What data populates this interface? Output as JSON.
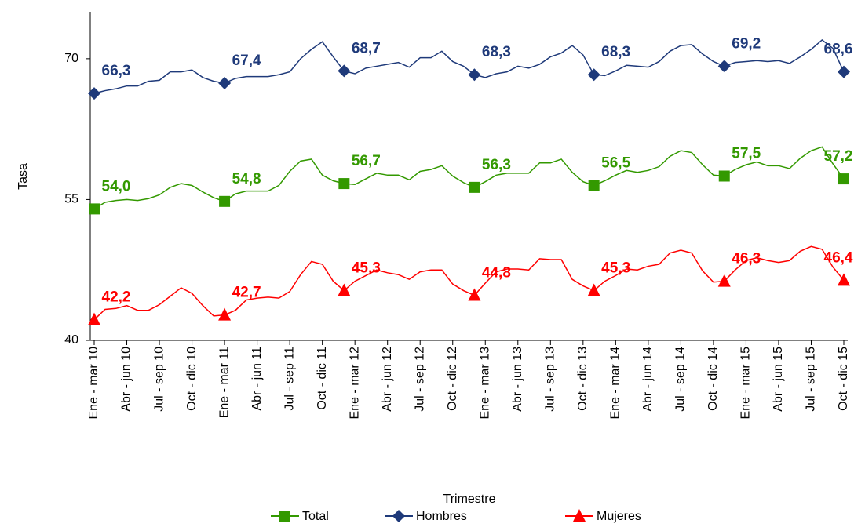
{
  "chart_data": {
    "type": "line",
    "y_label": "Tasa",
    "x_label": "Trimestre",
    "categories": [
      "Ene - mar 10",
      null,
      null,
      "Abr - jun 10",
      null,
      null,
      "Jul - sep 10",
      null,
      null,
      "Oct - dic 10",
      null,
      null,
      "Ene - mar 11",
      null,
      null,
      "Abr - jun 11",
      null,
      null,
      "Jul - sep 11",
      null,
      null,
      "Oct - dic 11",
      null,
      null,
      "Ene - mar 12",
      null,
      null,
      "Abr - jun 12",
      null,
      null,
      "Jul - sep 12",
      null,
      null,
      "Oct - dic 12",
      null,
      null,
      "Ene - mar 13",
      null,
      null,
      "Abr - jun 13",
      null,
      null,
      "Jul - sep 13",
      null,
      null,
      "Oct - dic 13",
      null,
      null,
      "Ene - mar 14",
      null,
      null,
      "Abr - jun 14",
      null,
      null,
      "Jul - sep 14",
      null,
      null,
      "Oct - dic 14",
      null,
      null,
      "Ene - mar 15",
      null,
      null,
      "Abr - jun 15",
      null,
      null,
      "Jul - sep 15",
      null,
      null,
      "Oct - dic 15"
    ],
    "ylim": [
      40,
      75
    ],
    "yticks": [
      40,
      55,
      70
    ],
    "series": [
      {
        "name": "Total",
        "color": "#339900",
        "marker": "square",
        "values": [
          54.0,
          54.7,
          54.9,
          55.0,
          54.9,
          55.1,
          55.5,
          56.3,
          56.7,
          56.5,
          55.8,
          55.2,
          54.8,
          55.6,
          55.9,
          55.9,
          55.9,
          56.5,
          58.0,
          59.1,
          59.3,
          57.6,
          57.0,
          56.7,
          56.6,
          57.2,
          57.8,
          57.6,
          57.6,
          57.1,
          58.0,
          58.2,
          58.6,
          57.5,
          56.8,
          56.3,
          56.9,
          57.6,
          57.8,
          57.8,
          57.8,
          58.9,
          58.9,
          59.3,
          57.9,
          56.9,
          56.5,
          57.0,
          57.6,
          58.1,
          57.9,
          58.1,
          58.5,
          59.6,
          60.2,
          60.0,
          58.7,
          57.6,
          57.5,
          58.2,
          58.7,
          59.0,
          58.6,
          58.6,
          58.3,
          59.4,
          60.2,
          60.6,
          58.8,
          57.2
        ],
        "value_labels": [
          "54,0",
          null,
          null,
          null,
          null,
          null,
          null,
          null,
          null,
          null,
          null,
          null,
          "54,8",
          null,
          null,
          null,
          null,
          null,
          null,
          null,
          null,
          null,
          null,
          "56,7",
          null,
          null,
          null,
          null,
          null,
          null,
          null,
          null,
          null,
          null,
          null,
          "56,3",
          null,
          null,
          null,
          null,
          null,
          null,
          null,
          null,
          null,
          null,
          "56,5",
          null,
          null,
          null,
          null,
          null,
          null,
          null,
          null,
          null,
          null,
          null,
          "57,5",
          null,
          null,
          null,
          null,
          null,
          null,
          null,
          null,
          null,
          null,
          "57,2"
        ]
      },
      {
        "name": "Hombres",
        "color": "#1f3a7a",
        "marker": "diamond",
        "values": [
          66.3,
          66.6,
          66.8,
          67.1,
          67.1,
          67.6,
          67.7,
          68.6,
          68.6,
          68.8,
          68.0,
          67.6,
          67.4,
          67.9,
          68.1,
          68.1,
          68.1,
          68.3,
          68.6,
          70.0,
          71.0,
          71.8,
          70.2,
          68.7,
          68.4,
          69.0,
          69.2,
          69.4,
          69.6,
          69.1,
          70.1,
          70.1,
          70.8,
          69.7,
          69.2,
          68.3,
          68.0,
          68.4,
          68.6,
          69.2,
          69.0,
          69.4,
          70.2,
          70.6,
          71.4,
          70.4,
          68.3,
          68.2,
          68.7,
          69.3,
          69.2,
          69.1,
          69.7,
          70.8,
          71.4,
          71.5,
          70.5,
          69.7,
          69.2,
          69.6,
          69.7,
          69.8,
          69.7,
          69.8,
          69.5,
          70.2,
          71.0,
          72.0,
          71.1,
          68.6
        ],
        "value_labels": [
          "66,3",
          null,
          null,
          null,
          null,
          null,
          null,
          null,
          null,
          null,
          null,
          null,
          "67,4",
          null,
          null,
          null,
          null,
          null,
          null,
          null,
          null,
          null,
          null,
          "68,7",
          null,
          null,
          null,
          null,
          null,
          null,
          null,
          null,
          null,
          null,
          null,
          "68,3",
          null,
          null,
          null,
          null,
          null,
          null,
          null,
          null,
          null,
          null,
          "68,3",
          null,
          null,
          null,
          null,
          null,
          null,
          null,
          null,
          null,
          null,
          null,
          "69,2",
          null,
          null,
          null,
          null,
          null,
          null,
          null,
          null,
          null,
          null,
          "68,6"
        ]
      },
      {
        "name": "Mujeres",
        "color": "#ff0000",
        "marker": "triangle",
        "values": [
          42.2,
          43.3,
          43.4,
          43.7,
          43.2,
          43.2,
          43.8,
          44.7,
          45.6,
          45.0,
          43.7,
          42.6,
          42.7,
          43.2,
          44.3,
          44.5,
          44.6,
          44.5,
          45.2,
          47.0,
          48.4,
          48.1,
          46.3,
          45.3,
          46.3,
          46.9,
          47.5,
          47.2,
          47.0,
          46.5,
          47.3,
          47.5,
          47.5,
          46.0,
          45.3,
          44.8,
          46.1,
          47.3,
          47.6,
          47.6,
          47.5,
          48.7,
          48.6,
          48.6,
          46.5,
          45.8,
          45.3,
          46.3,
          46.9,
          47.6,
          47.5,
          47.9,
          48.1,
          49.3,
          49.6,
          49.3,
          47.4,
          46.2,
          46.3,
          47.5,
          48.5,
          48.8,
          48.5,
          48.3,
          48.5,
          49.5,
          50.0,
          49.7,
          47.8,
          46.4
        ],
        "value_labels": [
          "42,2",
          null,
          null,
          null,
          null,
          null,
          null,
          null,
          null,
          null,
          null,
          null,
          "42,7",
          null,
          null,
          null,
          null,
          null,
          null,
          null,
          null,
          null,
          null,
          "45,3",
          null,
          null,
          null,
          null,
          null,
          null,
          null,
          null,
          null,
          null,
          null,
          "44,8",
          null,
          null,
          null,
          null,
          null,
          null,
          null,
          null,
          null,
          null,
          "45,3",
          null,
          null,
          null,
          null,
          null,
          null,
          null,
          null,
          null,
          null,
          null,
          "46,3",
          null,
          null,
          null,
          null,
          null,
          null,
          null,
          null,
          null,
          null,
          "46,4"
        ]
      }
    ],
    "legend": "bottom",
    "grid": false
  }
}
